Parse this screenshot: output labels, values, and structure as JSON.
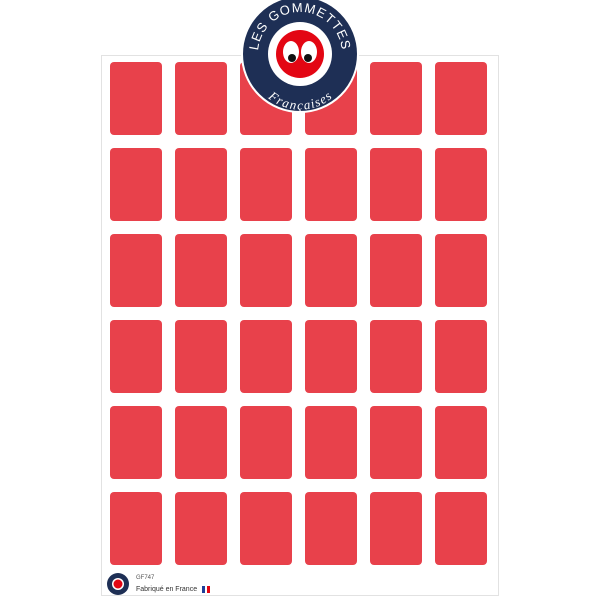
{
  "brand": {
    "line1": "LES GOMMETTES",
    "line2": "Françaises"
  },
  "grid": {
    "rows": 6,
    "columns": 6,
    "sticker_color": "#E8414B"
  },
  "footer": {
    "product_code": "GF747",
    "made_in": "Fabriqué en France"
  },
  "colors": {
    "navy": "#1E2F55",
    "red": "#E30613"
  }
}
